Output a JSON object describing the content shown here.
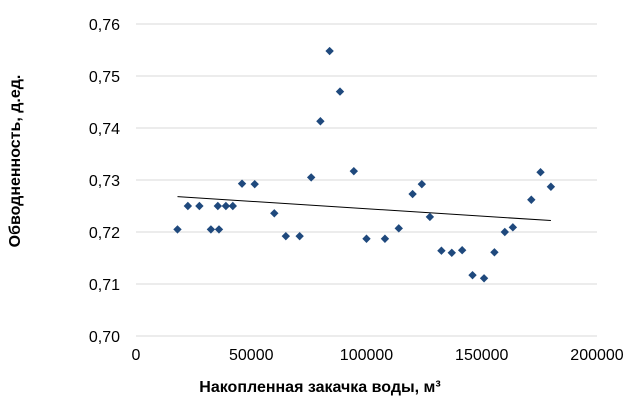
{
  "chart_data": {
    "type": "scatter",
    "xlabel": "Накопленная закачка воды, м³",
    "ylabel": "Обводненность, д.ед.",
    "xlim": [
      0,
      200000
    ],
    "ylim": [
      0.7,
      0.76
    ],
    "x_ticks": [
      "0",
      "50000",
      "100000",
      "150000",
      "200000"
    ],
    "y_ticks": [
      "0,70",
      "0,71",
      "0,72",
      "0,73",
      "0,74",
      "0,75",
      "0,76"
    ],
    "grid": "horizontal",
    "legend": "none",
    "marker": "diamond",
    "marker_color": "#1f497d",
    "trendline_color": "#000000",
    "series": [
      {
        "points": [
          [
            18000,
            0.7205
          ],
          [
            22500,
            0.725
          ],
          [
            27500,
            0.725
          ],
          [
            32500,
            0.7205
          ],
          [
            35500,
            0.725
          ],
          [
            36000,
            0.7205
          ],
          [
            39000,
            0.725
          ],
          [
            42000,
            0.725
          ],
          [
            46000,
            0.7293
          ],
          [
            51500,
            0.7292
          ],
          [
            60000,
            0.7236
          ],
          [
            65000,
            0.7192
          ],
          [
            71000,
            0.7192
          ],
          [
            76000,
            0.7305
          ],
          [
            80000,
            0.7413
          ],
          [
            84000,
            0.7548
          ],
          [
            88500,
            0.747
          ],
          [
            94500,
            0.7317
          ],
          [
            100000,
            0.7187
          ],
          [
            108000,
            0.7187
          ],
          [
            114000,
            0.7207
          ],
          [
            120000,
            0.7273
          ],
          [
            124000,
            0.7292
          ],
          [
            127500,
            0.7229
          ],
          [
            132500,
            0.7164
          ],
          [
            137000,
            0.716
          ],
          [
            141500,
            0.7165
          ],
          [
            146000,
            0.7117
          ],
          [
            151000,
            0.7111
          ],
          [
            155500,
            0.7161
          ],
          [
            160000,
            0.72
          ],
          [
            163500,
            0.7209
          ],
          [
            171500,
            0.7262
          ],
          [
            175500,
            0.7315
          ],
          [
            180000,
            0.7287
          ]
        ]
      }
    ],
    "trendline": {
      "x": [
        18000,
        180000
      ],
      "y": [
        0.7268,
        0.7222
      ]
    }
  }
}
